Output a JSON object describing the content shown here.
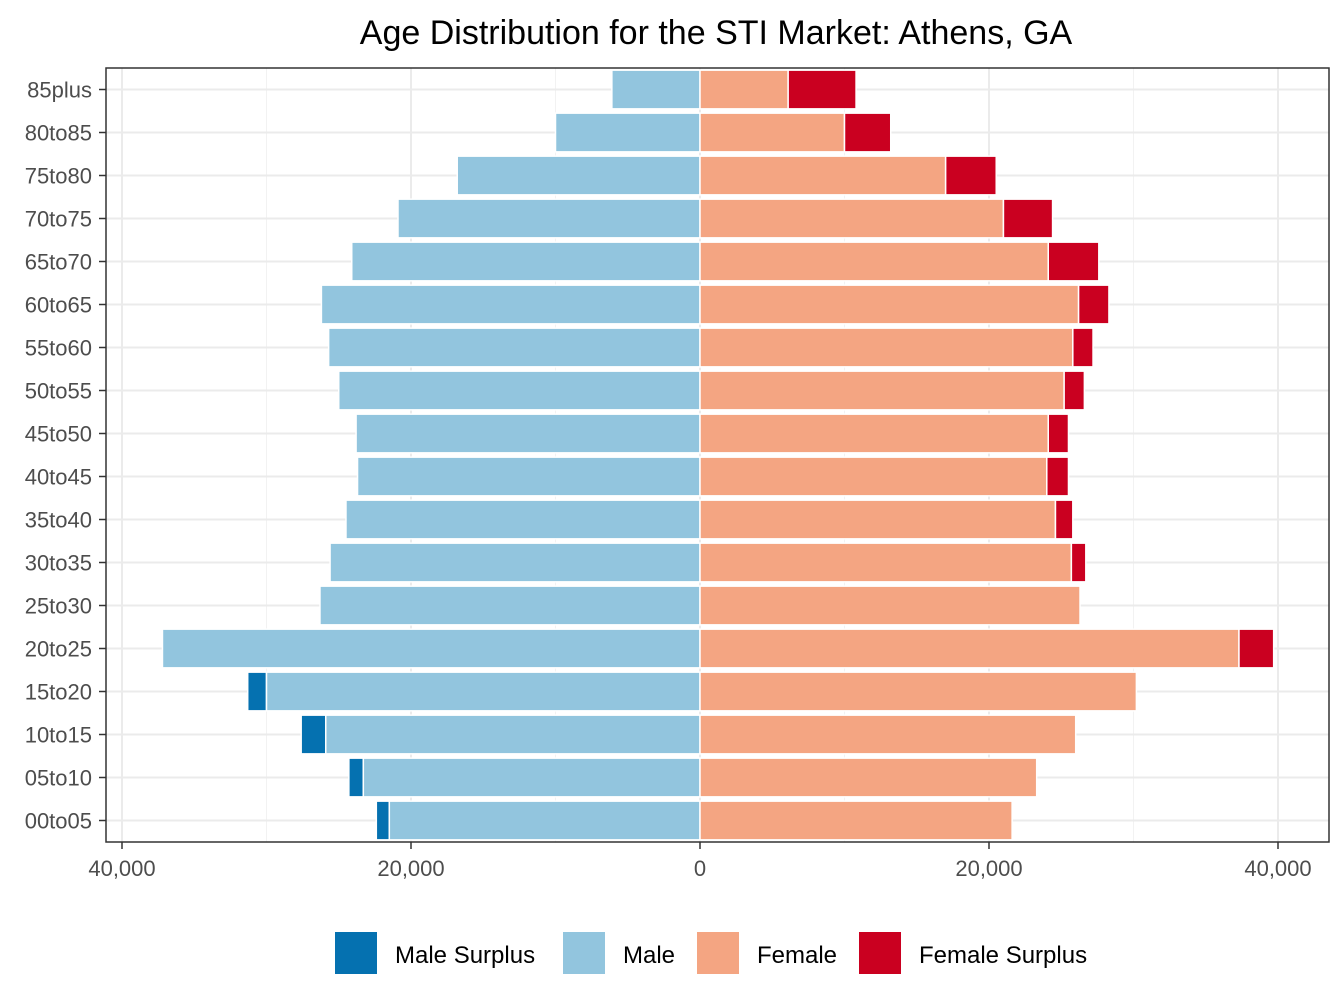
{
  "chart_data": {
    "type": "bar",
    "orientation": "horizontal",
    "title": "Age Distribution for the STI Market: Athens, GA",
    "xlabel": "",
    "ylabel": "",
    "categories": [
      "00to05",
      "05to10",
      "10to15",
      "15to20",
      "20to25",
      "25to30",
      "30to35",
      "35to40",
      "40to45",
      "45to50",
      "50to55",
      "55to60",
      "60to65",
      "65to70",
      "70to75",
      "75to80",
      "80to85",
      "85plus"
    ],
    "xlim": [
      -40000,
      40000
    ],
    "x_ticks": [
      -40000,
      -20000,
      0,
      20000,
      40000
    ],
    "x_tick_labels": [
      "40,000",
      "20,000",
      "0",
      "20,000",
      "40,000"
    ],
    "grid": true,
    "legend_position": "bottom",
    "series": [
      {
        "name": "Male Surplus",
        "color": "#0571b0",
        "side": "left",
        "stack_on": "Male",
        "values": [
          900,
          1000,
          1700,
          1300,
          0,
          0,
          0,
          0,
          0,
          0,
          0,
          0,
          0,
          0,
          0,
          0,
          0,
          0
        ]
      },
      {
        "name": "Male",
        "color": "#92c5de",
        "side": "left",
        "values": [
          21500,
          23300,
          25900,
          30000,
          37200,
          26300,
          25600,
          24500,
          23700,
          23800,
          25000,
          25700,
          26200,
          24100,
          20900,
          16800,
          10000,
          6100
        ]
      },
      {
        "name": "Female",
        "color": "#f4a582",
        "side": "right",
        "values": [
          21600,
          23300,
          26000,
          30200,
          37300,
          26300,
          25700,
          24600,
          24000,
          24100,
          25200,
          25800,
          26200,
          24100,
          21000,
          17000,
          10000,
          6100
        ]
      },
      {
        "name": "Female Surplus",
        "color": "#ca0020",
        "side": "right",
        "stack_on": "Female",
        "values": [
          0,
          0,
          0,
          0,
          2400,
          0,
          1000,
          1200,
          1500,
          1400,
          1400,
          1400,
          2100,
          3500,
          3400,
          3500,
          3200,
          4700
        ]
      }
    ]
  }
}
